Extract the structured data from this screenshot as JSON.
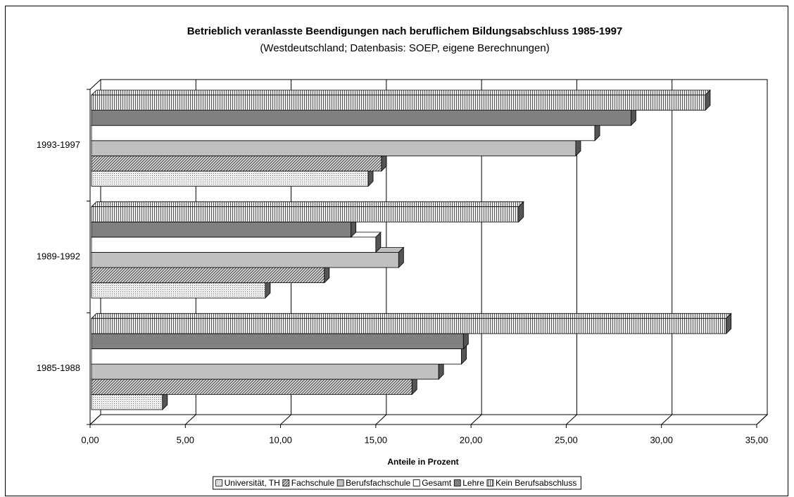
{
  "chart_data": {
    "type": "hbar3d",
    "title": "Betrieblich veranlasste Beendigungen nach beruflichem Bildungsabschluss 1985-1997",
    "subtitle": "(Westdeutschland; Datenbasis: SOEP, eigene Berechnungen)",
    "x_label": "Anteile in Prozent",
    "categories": [
      "1985-1988",
      "1989-1992",
      "1993-1997"
    ],
    "series": [
      {
        "name": "Universität, TH",
        "color": "#d8d8d8",
        "pattern": "dots",
        "values": [
          3.8,
          9.2,
          14.6
        ]
      },
      {
        "name": "Fachschule",
        "color": "#a0a0a0",
        "pattern": "diagonal",
        "values": [
          16.9,
          12.3,
          15.3
        ]
      },
      {
        "name": "Berufsfachschule",
        "color": "#c0c0c0",
        "pattern": "solid",
        "values": [
          18.3,
          16.2,
          25.5
        ]
      },
      {
        "name": "Gesamt",
        "color": "#ffffff",
        "pattern": "solid",
        "values": [
          19.5,
          15.0,
          26.5
        ]
      },
      {
        "name": "Lehre",
        "color": "#808080",
        "pattern": "solid",
        "values": [
          19.6,
          13.7,
          28.4
        ]
      },
      {
        "name": "Kein Berufsabschluss",
        "color": "#b0b0b0",
        "pattern": "vertical",
        "values": [
          33.4,
          22.5,
          32.3
        ]
      }
    ],
    "xlim": [
      0,
      35
    ],
    "xticks": [
      {
        "value": 0,
        "label": "0,00"
      },
      {
        "value": 5,
        "label": "5,00"
      },
      {
        "value": 10,
        "label": "10,00"
      },
      {
        "value": 15,
        "label": "15,00"
      },
      {
        "value": 20,
        "label": "20,00"
      },
      {
        "value": 25,
        "label": "25,00"
      },
      {
        "value": 30,
        "label": "30,00"
      },
      {
        "value": 35,
        "label": "35,00"
      }
    ],
    "grid": true,
    "legend": "bottom"
  }
}
